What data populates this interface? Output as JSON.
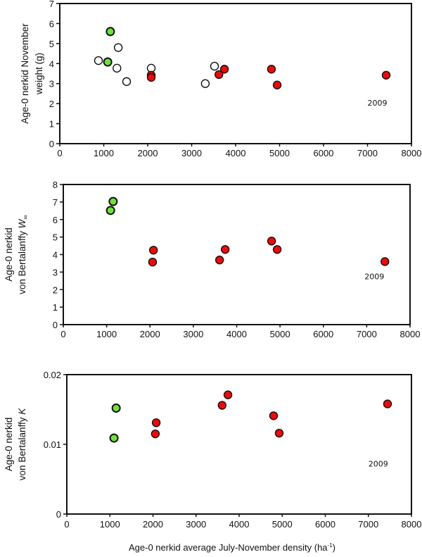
{
  "colors": {
    "filled_red": "#ee0a0a",
    "filled_green": "#6fe23a",
    "open": "#ffffff",
    "stroke": "#111111"
  },
  "chart_data": [
    {
      "type": "scatter",
      "title": "",
      "ylabel_lines": [
        "Age-0 nerkid November",
        "weight (g)"
      ],
      "xlabel": "",
      "xlim": [
        0,
        8000
      ],
      "ylim": [
        0,
        7
      ],
      "xticks": [
        0,
        1000,
        2000,
        3000,
        4000,
        5000,
        6000,
        7000,
        8000
      ],
      "yticks": [
        0,
        1,
        2,
        3,
        4,
        5,
        6,
        7
      ],
      "ytick_labels": [
        "0",
        "1",
        "2",
        "3",
        "4",
        "5",
        "6",
        "7"
      ],
      "annotation": {
        "text": "2009",
        "x": 7000,
        "y": 1.9
      },
      "series": [
        {
          "name": "open",
          "style": "open",
          "points": [
            [
              880,
              4.15
            ],
            [
              1330,
              4.8
            ],
            [
              1300,
              3.77
            ],
            [
              1520,
              3.1
            ],
            [
              2080,
              3.77
            ],
            [
              3310,
              3.0
            ],
            [
              3520,
              3.87
            ]
          ]
        },
        {
          "name": "green",
          "style": "green",
          "points": [
            [
              1150,
              5.6
            ],
            [
              1090,
              4.08
            ]
          ]
        },
        {
          "name": "red",
          "style": "red",
          "points": [
            [
              2080,
              3.42
            ],
            [
              2080,
              3.31
            ],
            [
              3620,
              3.45
            ],
            [
              3745,
              3.72
            ],
            [
              4815,
              3.72
            ],
            [
              4945,
              2.93
            ],
            [
              7425,
              3.42
            ]
          ]
        }
      ]
    },
    {
      "type": "scatter",
      "title": "",
      "ylabel_lines": [
        "Age-0 nerkid",
        "von Bertalanffy  W∞"
      ],
      "xlabel": "",
      "xlim": [
        0,
        8000
      ],
      "ylim": [
        0,
        8
      ],
      "xticks": [
        0,
        1000,
        2000,
        3000,
        4000,
        5000,
        6000,
        7000,
        8000
      ],
      "yticks": [
        0,
        1,
        2,
        3,
        4,
        5,
        6,
        7,
        8
      ],
      "ytick_labels": [
        "0",
        "1",
        "2",
        "3",
        "4",
        "5",
        "6",
        "7",
        "8"
      ],
      "annotation": {
        "text": "2009",
        "x": 6950,
        "y": 2.6
      },
      "series": [
        {
          "name": "green",
          "style": "green",
          "points": [
            [
              1150,
              7.03
            ],
            [
              1090,
              6.52
            ]
          ]
        },
        {
          "name": "red",
          "style": "red",
          "points": [
            [
              2080,
              4.25
            ],
            [
              2060,
              3.57
            ],
            [
              3605,
              3.69
            ],
            [
              3735,
              4.29
            ],
            [
              4805,
              4.77
            ],
            [
              4935,
              4.29
            ],
            [
              7420,
              3.6
            ]
          ]
        }
      ]
    },
    {
      "type": "scatter",
      "title": "",
      "ylabel_lines": [
        "Age-0 nerkid",
        "von Bertalanffy  K"
      ],
      "xlabel": "Age-0 nerkid average  July-November  density (ha⁻¹)",
      "xlim": [
        0,
        8000
      ],
      "ylim": [
        0,
        0.02
      ],
      "xticks": [
        0,
        1000,
        2000,
        3000,
        4000,
        5000,
        6000,
        7000,
        8000
      ],
      "yticks": [
        0,
        0.01,
        0.02
      ],
      "ytick_labels": [
        "0",
        "0.01",
        "0.02"
      ],
      "annotation": {
        "text": "2009",
        "x": 7000,
        "y": 0.0068
      },
      "series": [
        {
          "name": "green",
          "style": "green",
          "points": [
            [
              1145,
              0.0152
            ],
            [
              1095,
              0.0109
            ]
          ]
        },
        {
          "name": "red",
          "style": "red",
          "points": [
            [
              2075,
              0.0131
            ],
            [
              2055,
              0.0115
            ],
            [
              3605,
              0.0156
            ],
            [
              3740,
              0.0171
            ],
            [
              4800,
              0.0141
            ],
            [
              4930,
              0.0116
            ],
            [
              7445,
              0.0158
            ]
          ]
        }
      ]
    }
  ]
}
